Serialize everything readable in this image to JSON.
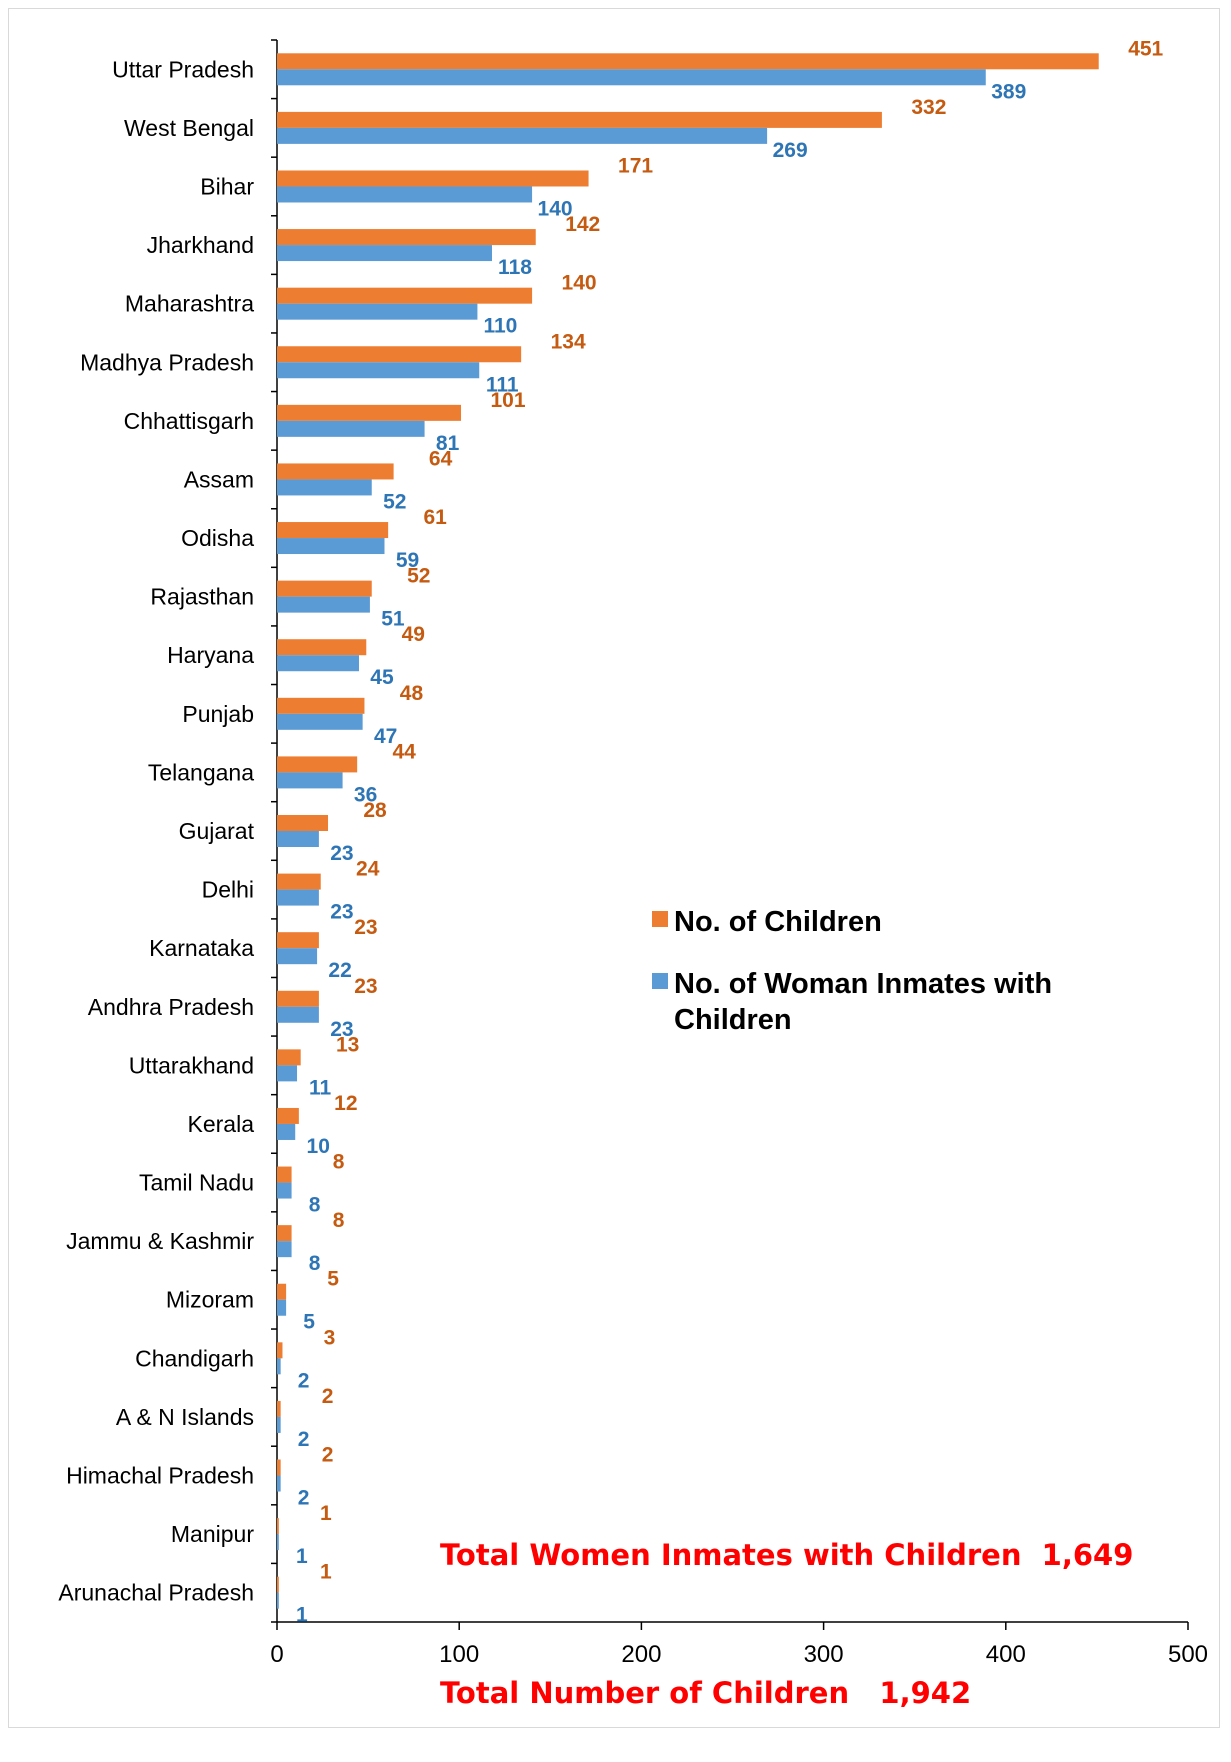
{
  "chart_data": {
    "type": "bar",
    "orientation": "horizontal",
    "categories": [
      "Uttar Pradesh",
      "West Bengal",
      "Bihar",
      "Jharkhand",
      "Maharashtra",
      "Madhya Pradesh",
      "Chhattisgarh",
      "Assam",
      "Odisha",
      "Rajasthan",
      "Haryana",
      "Punjab",
      "Telangana",
      "Gujarat",
      "Delhi",
      "Karnataka",
      "Andhra Pradesh",
      "Uttarakhand",
      "Kerala",
      "Tamil Nadu",
      "Jammu & Kashmir",
      "Mizoram",
      "Chandigarh",
      "A & N Islands",
      "Himachal Pradesh",
      "Manipur",
      "Arunachal Pradesh"
    ],
    "series": [
      {
        "name": "No. of Children",
        "color": "#ed7d31",
        "label_color": "#c55a11",
        "values": [
          451,
          332,
          171,
          142,
          140,
          134,
          101,
          64,
          61,
          52,
          49,
          48,
          44,
          28,
          24,
          23,
          23,
          13,
          12,
          8,
          8,
          5,
          3,
          2,
          2,
          1,
          1
        ]
      },
      {
        "name": "No. of Woman Inmates with Children",
        "color": "#5b9bd5",
        "label_color": "#2e75b6",
        "values": [
          389,
          269,
          140,
          118,
          110,
          111,
          81,
          52,
          59,
          51,
          45,
          47,
          36,
          23,
          23,
          22,
          23,
          11,
          10,
          8,
          8,
          5,
          2,
          2,
          2,
          1,
          1
        ]
      }
    ],
    "xlim": [
      0,
      500
    ],
    "xticks": [
      "0",
      "100",
      "200",
      "300",
      "400",
      "500"
    ],
    "grid": false,
    "legend_placement": "right-center"
  },
  "legend": {
    "children": "No. of Children",
    "inmates": "No. of Woman Inmates with Children"
  },
  "totals": {
    "line1": "Total Women Inmates with Children  1,649",
    "line2": "Total Number of Children   1,942"
  }
}
